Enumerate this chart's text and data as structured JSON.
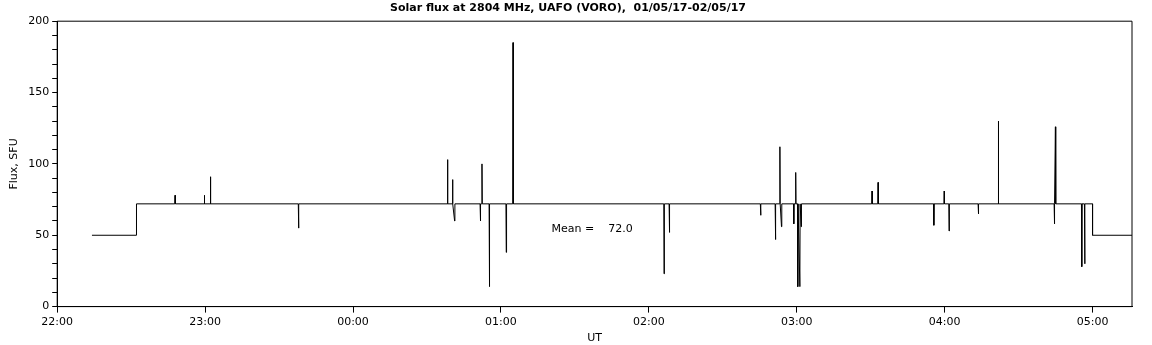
{
  "chart_data": {
    "type": "line",
    "title": "Solar flux at 2804 MHz, UAFO (VORO),  01/05/17-02/05/17",
    "xlabel": "UT",
    "ylabel": "Flux, SFU",
    "color": "#000000",
    "x": [
      "--05-01T22:14:06",
      "--05-01T22:32:10",
      "--05-01T22:32:10",
      "--05-01T22:47:42",
      "--05-01T22:47:49",
      "--05-01T22:47:56",
      "--05-01T22:59:35",
      "--05-01T22:59:42",
      "--05-01T22:59:49",
      "--05-01T23:02:02",
      "--05-01T23:02:10",
      "--05-01T23:02:17",
      "--05-01T23:37:48",
      "--05-01T23:37:55",
      "--05-01T23:38:02",
      "--05-02T00:38:13",
      "--05-02T00:38:20",
      "--05-02T00:38:28",
      "--05-02T00:40:16",
      "--05-02T00:40:23",
      "--05-02T00:40:30",
      "--05-02T00:41:13",
      "--05-02T00:41:20",
      "--05-02T00:51:32",
      "--05-02T00:51:40",
      "--05-02T00:51:47",
      "--05-02T00:52:12",
      "--05-02T00:52:19",
      "--05-02T00:52:26",
      "--05-02T00:55:12",
      "--05-02T00:55:19",
      "--05-02T00:55:26",
      "--05-02T01:02:02",
      "--05-02T01:02:10",
      "--05-02T01:02:17",
      "--05-02T01:04:48",
      "--05-02T01:04:55",
      "--05-02T01:05:02",
      "--05-02T02:06:04",
      "--05-02T02:06:11",
      "--05-02T02:06:18",
      "--05-02T02:08:13",
      "--05-02T02:08:20",
      "--05-02T02:08:28",
      "--05-02T02:45:14",
      "--05-02T02:45:22",
      "--05-02T02:45:29",
      "--05-02T02:51:14",
      "--05-02T02:51:22",
      "--05-02T02:51:29",
      "--05-02T02:53:02",
      "--05-02T02:53:10",
      "--05-02T02:53:17",
      "--05-02T02:53:49",
      "--05-02T02:53:56",
      "--05-02T02:58:41",
      "--05-02T02:58:48",
      "--05-02T02:58:55",
      "--05-02T02:59:28",
      "--05-02T02:59:35",
      "--05-02T02:59:42",
      "--05-02T03:00:18",
      "--05-02T03:00:25",
      "--05-02T03:00:32",
      "--05-02T03:01:16",
      "--05-02T03:01:23",
      "--05-02T03:01:48",
      "--05-02T03:01:55",
      "--05-02T03:30:25",
      "--05-02T03:30:32",
      "--05-02T03:30:40",
      "--05-02T03:32:53",
      "--05-02T03:33:00",
      "--05-02T03:33:07",
      "--05-02T03:55:30",
      "--05-02T03:55:37",
      "--05-02T03:55:44",
      "--05-02T03:59:42",
      "--05-02T03:59:49",
      "--05-02T03:59:56",
      "--05-02T04:01:41",
      "--05-02T04:01:48",
      "--05-02T04:01:55",
      "--05-02T04:13:34",
      "--05-02T04:13:41",
      "--05-02T04:13:48",
      "--05-02T04:21:40",
      "--05-02T04:21:47",
      "--05-02T04:21:54",
      "--05-02T04:44:24",
      "--05-02T04:44:31",
      "--05-02T04:44:38",
      "--05-02T04:44:56",
      "--05-02T04:45:04",
      "--05-02T04:55:30",
      "--05-02T04:55:37",
      "--05-02T04:55:44",
      "--05-02T04:56:42",
      "--05-02T04:56:49",
      "--05-02T04:56:56",
      "--05-02T05:00:00",
      "--05-02T05:00:00",
      "--05-02T05:16:00"
    ],
    "values": [
      50,
      50,
      72,
      72,
      78,
      72,
      72,
      78,
      72,
      72,
      91,
      72,
      72,
      55,
      72,
      72,
      103,
      72,
      72,
      89,
      72,
      60,
      72,
      72,
      60,
      72,
      72,
      100,
      72,
      72,
      14,
      72,
      72,
      38,
      72,
      72,
      185,
      72,
      72,
      23,
      72,
      72,
      52,
      72,
      72,
      64,
      72,
      72,
      47,
      72,
      72,
      112,
      72,
      56,
      72,
      72,
      58,
      72,
      72,
      94,
      72,
      72,
      14,
      72,
      14,
      72,
      56,
      72,
      72,
      81,
      72,
      72,
      87,
      72,
      72,
      57,
      72,
      72,
      81,
      72,
      72,
      53,
      72,
      72,
      65,
      72,
      72,
      130,
      72,
      72,
      58,
      72,
      126,
      72,
      72,
      28,
      72,
      72,
      30,
      72,
      72,
      50,
      50
    ],
    "xlim": [
      "--05-01T22:00",
      "--05-02T05:16"
    ],
    "xticks": [
      {
        "value": "--05-01T22:00",
        "label": "22:00"
      },
      {
        "value": "--05-01T23:00",
        "label": "23:00"
      },
      {
        "value": "--05-02T00:00",
        "label": "00:00"
      },
      {
        "value": "--05-02T01:00",
        "label": "01:00"
      },
      {
        "value": "--05-02T02:00",
        "label": "02:00"
      },
      {
        "value": "--05-02T03:00",
        "label": "03:00"
      },
      {
        "value": "--05-02T04:00",
        "label": "04:00"
      },
      {
        "value": "--05-02T05:00",
        "label": "05:00"
      }
    ],
    "ylim": [
      0,
      200
    ],
    "yticks": [
      0,
      {
        "value": 10,
        "label": null
      },
      {
        "value": 20,
        "label": null
      },
      {
        "value": 30,
        "label": null
      },
      {
        "value": 40,
        "label": null
      },
      50,
      {
        "value": 60,
        "label": null
      },
      {
        "value": 70,
        "label": null
      },
      {
        "value": 80,
        "label": null
      },
      {
        "value": 90,
        "label": null
      },
      100,
      {
        "value": 110,
        "label": null
      },
      {
        "value": 120,
        "label": null
      },
      {
        "value": 130,
        "label": null
      },
      {
        "value": 140,
        "label": null
      },
      150,
      {
        "value": 160,
        "label": null
      },
      {
        "value": 170,
        "label": null
      },
      {
        "value": 180,
        "label": null
      },
      {
        "value": 190,
        "label": null
      },
      200
    ],
    "annotations": [
      "Mean =    72.0"
    ]
  }
}
